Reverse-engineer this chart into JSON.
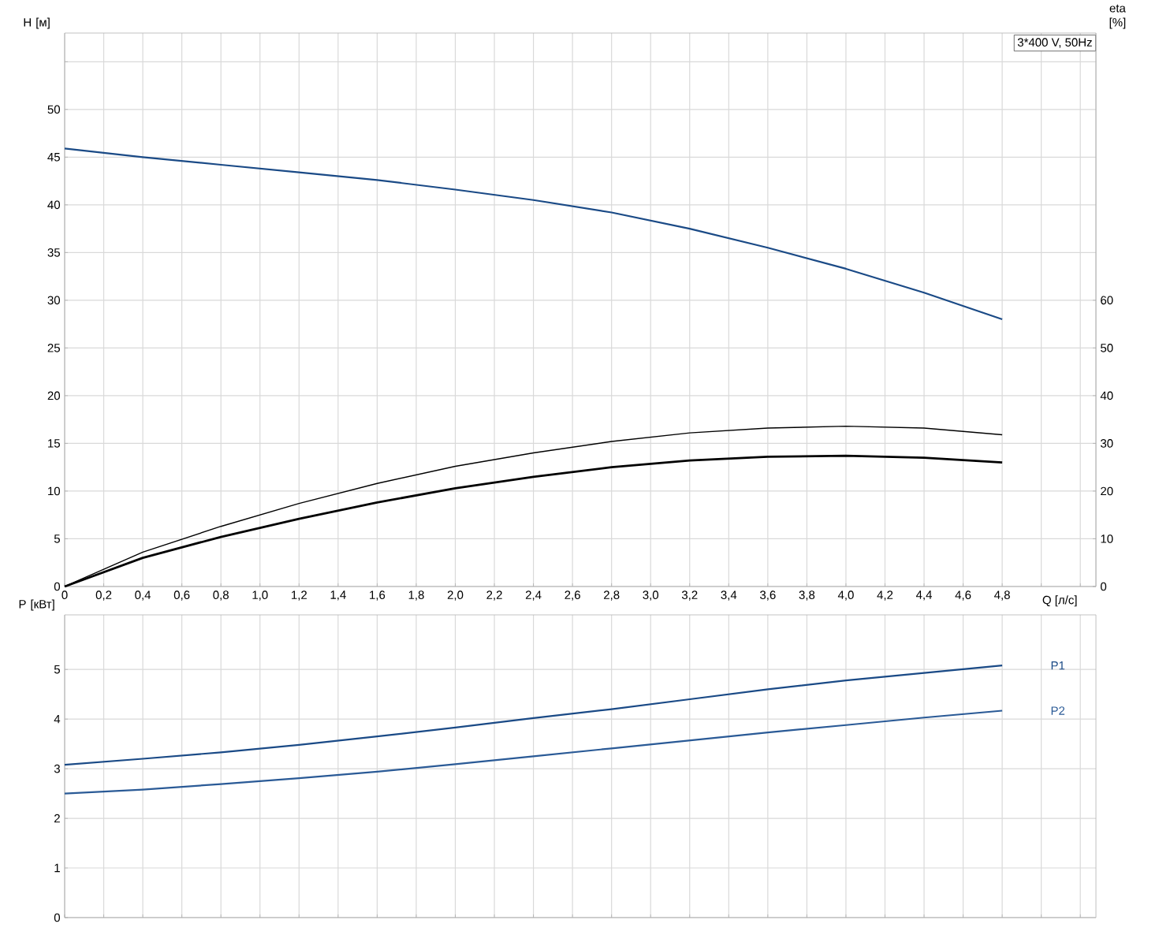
{
  "chart_data": [
    {
      "type": "line",
      "xlabel": "Q [л/с]",
      "ylabel": "H [м]",
      "y2label": "eta [%]",
      "annotations": [
        "3*400 V, 50Hz"
      ],
      "x": [
        0,
        0.4,
        0.8,
        1.2,
        1.6,
        2.0,
        2.4,
        2.8,
        3.2,
        3.6,
        4.0,
        4.4,
        4.8
      ],
      "xlim": [
        0,
        5.28
      ],
      "xticks": [
        0,
        {
          "value": 0.2,
          "label": "0,2"
        },
        {
          "value": 0.4,
          "label": "0,4"
        },
        {
          "value": 0.6,
          "label": "0,6"
        },
        {
          "value": 0.8,
          "label": "0,8"
        },
        {
          "value": 1.0,
          "label": "1,0"
        },
        {
          "value": 1.2,
          "label": "1,2"
        },
        {
          "value": 1.4,
          "label": "1,4"
        },
        {
          "value": 1.6,
          "label": "1,6"
        },
        {
          "value": 1.8,
          "label": "1,8"
        },
        {
          "value": 2.0,
          "label": "2,0"
        },
        {
          "value": 2.2,
          "label": "2,2"
        },
        {
          "value": 2.4,
          "label": "2,4"
        },
        {
          "value": 2.6,
          "label": "2,6"
        },
        {
          "value": 2.8,
          "label": "2,8"
        },
        {
          "value": 3.0,
          "label": "3,0"
        },
        {
          "value": 3.2,
          "label": "3,2"
        },
        {
          "value": 3.4,
          "label": "3,4"
        },
        {
          "value": 3.6,
          "label": "3,6"
        },
        {
          "value": 3.8,
          "label": "3,8"
        },
        {
          "value": 4.0,
          "label": "4,0"
        },
        {
          "value": 4.2,
          "label": "4,2"
        },
        {
          "value": 4.4,
          "label": "4,4"
        },
        {
          "value": 4.6,
          "label": "4,6"
        },
        {
          "value": 4.8,
          "label": "4,8"
        },
        {
          "value": 5.0,
          "label": null
        },
        {
          "value": 5.2,
          "label": null
        }
      ],
      "ylim": [
        0,
        58
      ],
      "yticks": [
        0,
        5,
        10,
        15,
        20,
        25,
        30,
        35,
        40,
        45,
        50,
        {
          "value": 55,
          "label": null
        }
      ],
      "y2lim": [
        0,
        116
      ],
      "y2ticks": [
        0,
        10,
        20,
        30,
        40,
        50,
        60
      ],
      "grid": true,
      "series": [
        {
          "color": "#1a4a86",
          "values": [
            45.9,
            45.0,
            44.2,
            43.4,
            42.6,
            41.6,
            40.5,
            39.2,
            37.5,
            35.5,
            33.3,
            30.8,
            28.0
          ]
        },
        {
          "color": "#000000",
          "axis": "y2",
          "values": [
            0,
            7.2,
            12.6,
            17.4,
            21.6,
            25.2,
            28.0,
            30.4,
            32.2,
            33.2,
            33.6,
            33.2,
            31.8
          ]
        },
        {
          "color": "#000000",
          "axis": "y2",
          "values": [
            0,
            6.0,
            10.4,
            14.2,
            17.6,
            20.6,
            23.0,
            25.0,
            26.4,
            27.2,
            27.4,
            27.0,
            26.0
          ]
        }
      ]
    },
    {
      "type": "line",
      "ylabel": "P [кВт]",
      "x": [
        0,
        0.4,
        0.8,
        1.2,
        1.6,
        2.0,
        2.4,
        2.8,
        3.2,
        3.6,
        4.0,
        4.4,
        4.8
      ],
      "xlim": [
        0,
        5.28
      ],
      "xticks": [
        0,
        0.2,
        0.4,
        0.6,
        0.8,
        1.0,
        1.2,
        1.4,
        1.6,
        1.8,
        2.0,
        2.2,
        2.4,
        2.6,
        2.8,
        3.0,
        3.2,
        3.4,
        3.6,
        3.8,
        4.0,
        4.2,
        4.4,
        4.6,
        4.8,
        5.0,
        5.2
      ],
      "ylim": [
        0,
        6.1
      ],
      "yticks": [
        0,
        1,
        2,
        3,
        4,
        5
      ],
      "grid": true,
      "tick_labels": "y",
      "series": [
        {
          "name": "P1",
          "color": "#1a4a86",
          "values": [
            3.08,
            3.2,
            3.33,
            3.48,
            3.65,
            3.83,
            4.02,
            4.2,
            4.4,
            4.6,
            4.78,
            4.93,
            5.08
          ]
        },
        {
          "name": "P2",
          "color": "#2a5a96",
          "values": [
            2.5,
            2.58,
            2.69,
            2.81,
            2.94,
            3.09,
            3.25,
            3.41,
            3.57,
            3.73,
            3.88,
            4.03,
            4.17
          ]
        }
      ]
    }
  ]
}
